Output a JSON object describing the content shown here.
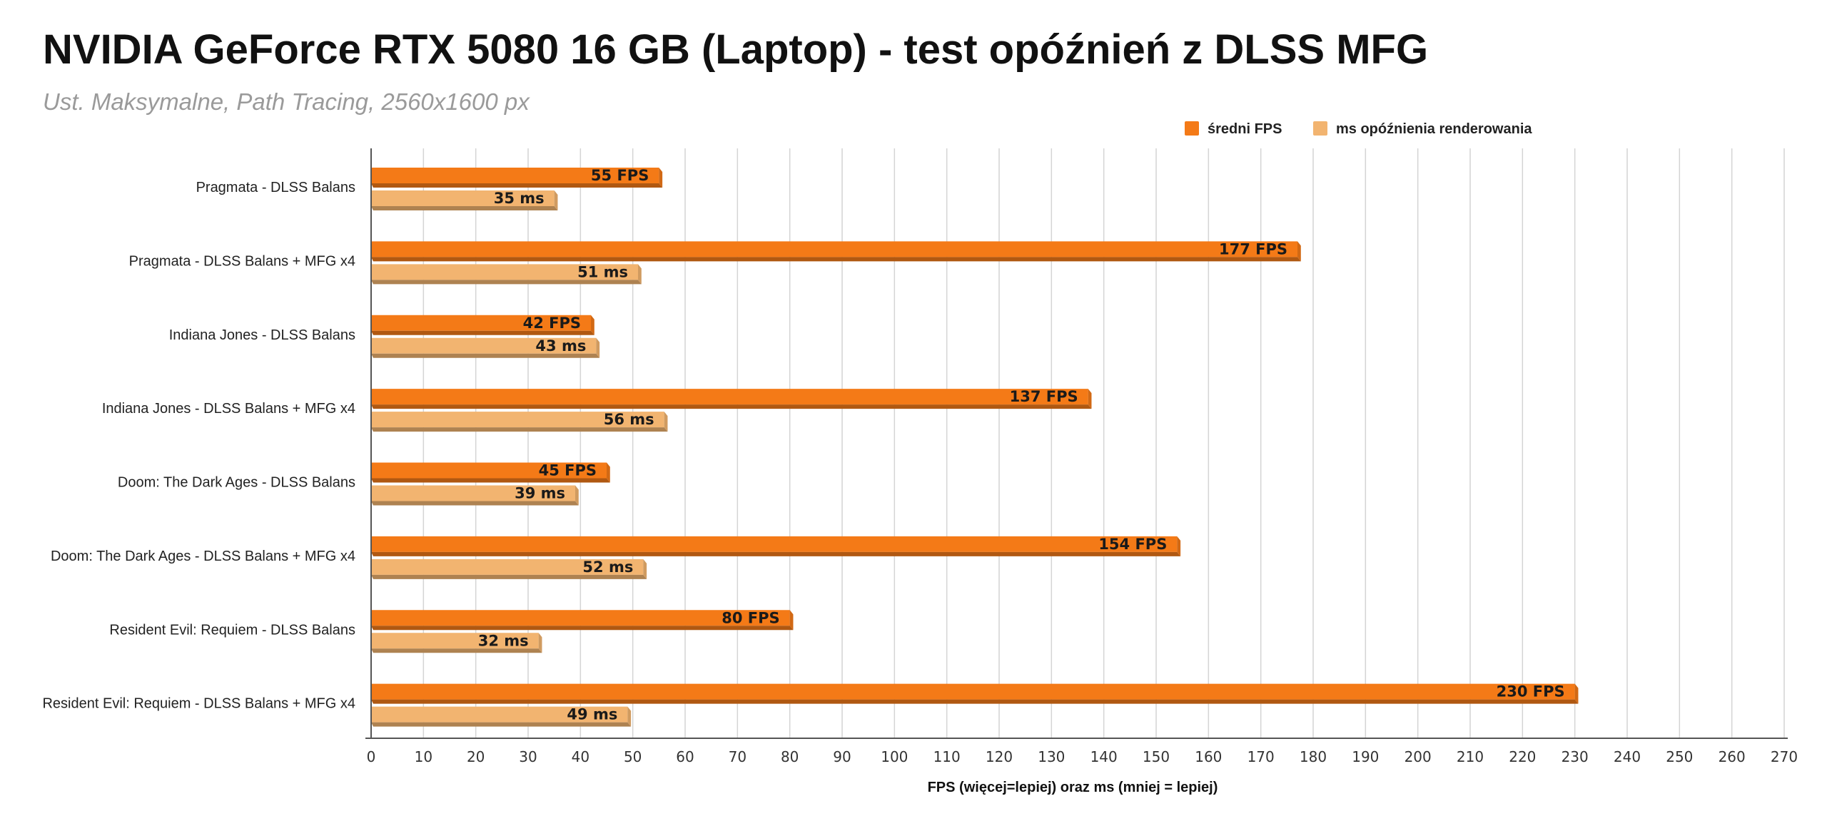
{
  "chart_data": {
    "type": "bar",
    "orientation": "horizontal",
    "title": "NVIDIA GeForce RTX 5080 16 GB (Laptop) - test opóźnień z DLSS MFG",
    "subtitle": "Ust. Maksymalne, Path Tracing, 2560x1600 px",
    "xlabel": "FPS (więcej=lepiej) oraz ms (mniej = lepiej)",
    "ylabel": "",
    "xlim": [
      0,
      270
    ],
    "x_ticks": [
      0,
      10,
      20,
      30,
      40,
      50,
      60,
      70,
      80,
      90,
      100,
      110,
      120,
      130,
      140,
      150,
      160,
      170,
      180,
      190,
      200,
      210,
      220,
      230,
      240,
      250,
      260,
      270
    ],
    "grid": "vertical",
    "legend_position": "top-right",
    "categories": [
      "Pragmata - DLSS Balans",
      "Pragmata - DLSS Balans + MFG x4",
      "Indiana Jones - DLSS Balans",
      "Indiana Jones - DLSS Balans + MFG x4",
      "Doom: The Dark Ages - DLSS Balans",
      "Doom: The Dark Ages - DLSS Balans + MFG x4",
      "Resident Evil: Requiem - DLSS Balans",
      "Resident Evil: Requiem - DLSS Balans + MFG x4"
    ],
    "series": [
      {
        "name": "średni FPS",
        "color": "#f47a17",
        "unit_suffix": " FPS",
        "values": [
          55,
          177,
          42,
          137,
          45,
          154,
          80,
          230
        ],
        "labels": [
          "55 FPS",
          "177 FPS",
          "42 FPS",
          "137 FPS",
          "45 FPS",
          "154 FPS",
          "80 FPS",
          "230 FPS"
        ]
      },
      {
        "name": "ms opóźnienia renderowania",
        "color": "#f2b470",
        "unit_suffix": " ms",
        "values": [
          35,
          51,
          43,
          56,
          39,
          52,
          32,
          49
        ],
        "labels": [
          "35 ms",
          "51 ms",
          "43 ms",
          "56 ms",
          "39 ms",
          "52 ms",
          "32 ms",
          "49 ms"
        ]
      }
    ]
  }
}
